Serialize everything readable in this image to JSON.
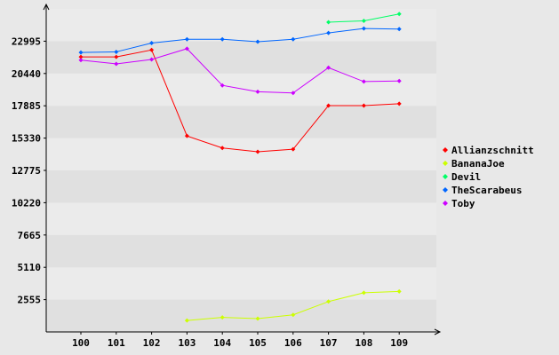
{
  "chart_data": {
    "type": "line",
    "categories": [
      "100",
      "101",
      "102",
      "103",
      "104",
      "105",
      "106",
      "107",
      "108",
      "109"
    ],
    "y_ticks": [
      2555,
      5110,
      7665,
      10220,
      12775,
      15330,
      17885,
      20440,
      22995
    ],
    "ylim": [
      0,
      25550
    ],
    "grid": "horizontal bands",
    "legend_position": "right",
    "series": [
      {
        "name": "Allianzschnitt",
        "color": "#ff0000",
        "values": [
          21750,
          21750,
          22300,
          15500,
          14550,
          14250,
          14450,
          17900,
          17900,
          18050
        ]
      },
      {
        "name": "BananaJoe",
        "color": "#ccff00",
        "values": [
          null,
          null,
          null,
          900,
          1150,
          1050,
          1350,
          2400,
          3100,
          3200
        ]
      },
      {
        "name": "Devil",
        "color": "#00ff66",
        "values": [
          null,
          null,
          null,
          null,
          null,
          null,
          null,
          24500,
          24600,
          25150
        ]
      },
      {
        "name": "TheScarabeus",
        "color": "#0066ff",
        "values": [
          22100,
          22150,
          22850,
          23150,
          23150,
          22950,
          23150,
          23650,
          24000,
          23950
        ]
      },
      {
        "name": "Toby",
        "color": "#cc00ff",
        "values": [
          21500,
          21200,
          21550,
          22400,
          19500,
          19000,
          18900,
          20900,
          19800,
          19850
        ]
      }
    ]
  }
}
